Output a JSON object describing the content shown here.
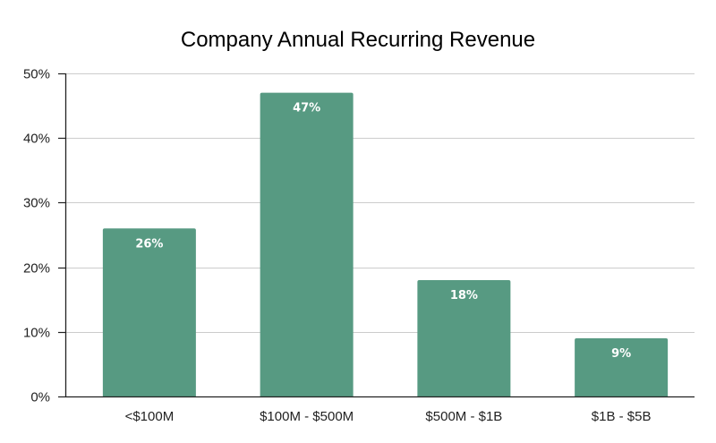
{
  "chart_data": {
    "type": "bar",
    "title": "Company Annual Recurring Revenue",
    "xlabel": "",
    "ylabel": "",
    "categories": [
      "<$100M",
      "$100M - $500M",
      "$500M - $1B",
      "$1B - $5B"
    ],
    "values": [
      26,
      47,
      18,
      9
    ],
    "data_labels": [
      "26%",
      "47%",
      "18%",
      "9%"
    ],
    "ylim": [
      0,
      50
    ],
    "yticks": [
      0,
      10,
      20,
      30,
      40,
      50
    ],
    "ytick_labels": [
      "0%",
      "10%",
      "20%",
      "30%",
      "40%",
      "50%"
    ],
    "grid": true,
    "legend": "none",
    "bar_color": "#579a82"
  }
}
